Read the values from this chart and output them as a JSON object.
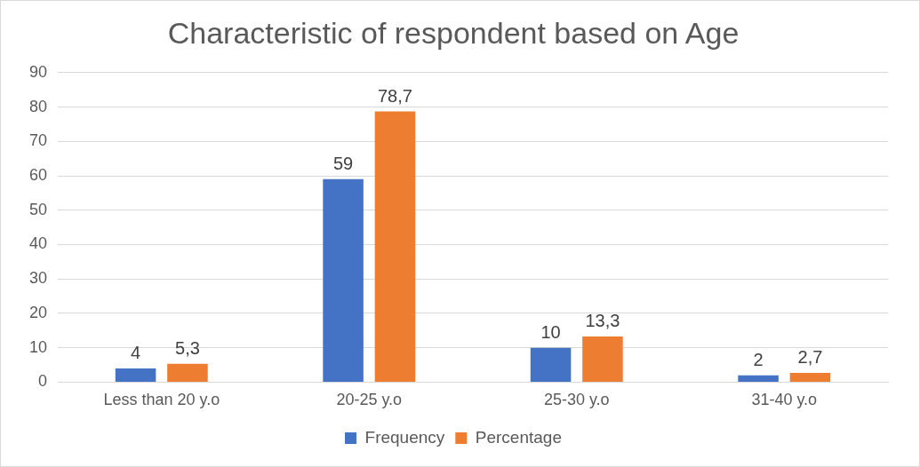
{
  "chart_data": {
    "type": "bar",
    "title": "Characteristic of respondent based on Age",
    "categories": [
      "Less than 20 y.o",
      "20-25 y.o",
      "25-30 y.o",
      "31-40 y.o"
    ],
    "series": [
      {
        "name": "Frequency",
        "color": "#4472c4",
        "values": [
          4,
          59,
          10,
          2
        ],
        "value_labels": [
          "4",
          "59",
          "10",
          "2"
        ]
      },
      {
        "name": "Percentage",
        "color": "#ed7d31",
        "values": [
          5.3,
          78.7,
          13.3,
          2.7
        ],
        "value_labels": [
          "5,3",
          "78,7",
          "13,3",
          "2,7"
        ]
      }
    ],
    "ylim": [
      0,
      90
    ],
    "yticks": [
      0,
      10,
      20,
      30,
      40,
      50,
      60,
      70,
      80,
      90
    ],
    "grid": "y",
    "legend": "bottom"
  }
}
